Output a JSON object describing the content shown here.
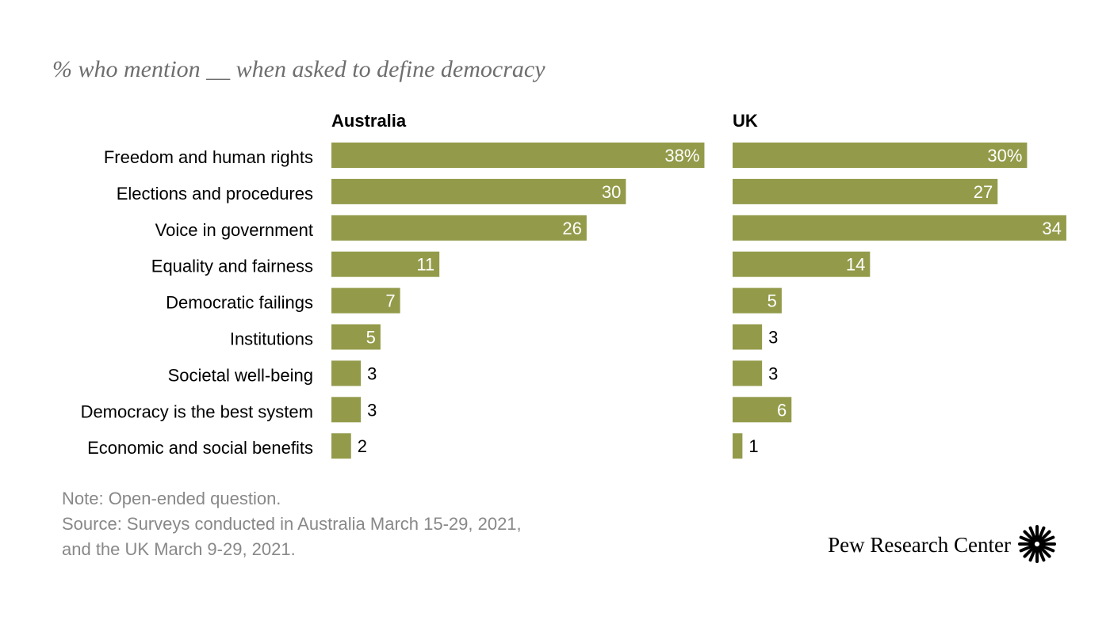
{
  "header": {
    "subtitle": "% who mention __ when asked to define democracy"
  },
  "chart_data": {
    "type": "bar",
    "orientation": "horizontal",
    "subtitle": "% who mention __ when asked to define democracy",
    "categories": [
      "Freedom and human rights",
      "Elections and procedures",
      "Voice in government",
      "Equality and fairness",
      "Democratic failings",
      "Institutions",
      "Societal well-being",
      "Democracy is the best system",
      "Economic and social benefits"
    ],
    "series": [
      {
        "name": "Australia",
        "values": [
          38,
          30,
          26,
          11,
          7,
          5,
          3,
          3,
          2
        ],
        "labels": [
          "38%",
          "30",
          "26",
          "11",
          "7",
          "5",
          "3",
          "3",
          "2"
        ]
      },
      {
        "name": "UK",
        "values": [
          30,
          27,
          34,
          14,
          5,
          3,
          3,
          6,
          1
        ],
        "labels": [
          "30%",
          "27",
          "34",
          "14",
          "5",
          "3",
          "3",
          "6",
          "1"
        ]
      }
    ],
    "bar_color": "#939b4a",
    "grid": false,
    "legend": "none"
  },
  "footer": {
    "note": "Note: Open-ended question.",
    "source_line1": "Source: Surveys conducted in Australia March 15-29, 2021,",
    "source_line2": "and the UK March 9-29, 2021.",
    "brand": "Pew Research Center",
    "brand_icon": "pew-logo-icon"
  }
}
